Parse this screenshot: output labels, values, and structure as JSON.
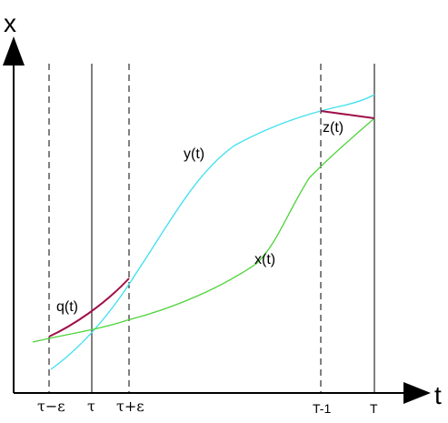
{
  "axes": {
    "y_label": "x",
    "x_label": "t"
  },
  "ticks": {
    "tau_minus_eps": "τ−ε",
    "tau": "τ",
    "tau_plus_eps": "τ+ε",
    "t_minus_1": "T-1",
    "t_end": "T"
  },
  "curves": {
    "y_label": "y(t)",
    "x_label": "x(t)",
    "q_label": "q(t)",
    "z_label": "z(t)"
  },
  "colors": {
    "y_curve": "#3fe0ef",
    "x_curve": "#4ed33a",
    "q_curve": "#a0104a",
    "z_curve": "#a0104a",
    "axes": "#000000"
  }
}
